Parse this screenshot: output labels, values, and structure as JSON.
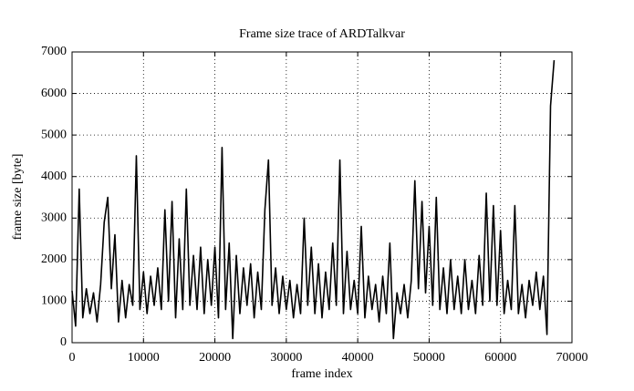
{
  "chart_data": {
    "type": "line",
    "title": "Frame size trace of ARDTalkvar",
    "x_label": "frame index",
    "y_label": "frame size [byte]",
    "color": "#000000",
    "grid": true,
    "xlim": [
      0,
      70000
    ],
    "xticks": [
      0,
      10000,
      20000,
      30000,
      40000,
      50000,
      60000,
      70000
    ],
    "ylim": [
      0,
      7000
    ],
    "yticks": [
      0,
      1000,
      2000,
      3000,
      4000,
      5000,
      6000,
      7000
    ],
    "x": [
      0,
      500,
      1000,
      1500,
      2000,
      2500,
      3000,
      3500,
      4000,
      4500,
      5000,
      5500,
      6000,
      6500,
      7000,
      7500,
      8000,
      8500,
      9000,
      9500,
      10000,
      10500,
      11000,
      11500,
      12000,
      12500,
      13000,
      13500,
      14000,
      14500,
      15000,
      15500,
      16000,
      16500,
      17000,
      17500,
      18000,
      18500,
      19000,
      19500,
      20000,
      20500,
      21000,
      21500,
      22000,
      22500,
      23000,
      23500,
      24000,
      24500,
      25000,
      25500,
      26000,
      26500,
      27000,
      27500,
      28000,
      28500,
      29000,
      29500,
      30000,
      30500,
      31000,
      31500,
      32000,
      32500,
      33000,
      33500,
      34000,
      34500,
      35000,
      35500,
      36000,
      36500,
      37000,
      37500,
      38000,
      38500,
      39000,
      39500,
      40000,
      40500,
      41000,
      41500,
      42000,
      42500,
      43000,
      43500,
      44000,
      44500,
      45000,
      45500,
      46000,
      46500,
      47000,
      47500,
      48000,
      48500,
      49000,
      49500,
      50000,
      50500,
      51000,
      51500,
      52000,
      52500,
      53000,
      53500,
      54000,
      54500,
      55000,
      55500,
      56000,
      56500,
      57000,
      57500,
      58000,
      58500,
      59000,
      59500,
      60000,
      60500,
      61000,
      61500,
      62000,
      62500,
      63000,
      63500,
      64000,
      64500,
      65000,
      65500,
      66000,
      66500,
      67000,
      67500
    ],
    "values": [
      1250,
      400,
      3700,
      600,
      1300,
      700,
      1200,
      500,
      1400,
      2900,
      3500,
      1300,
      2600,
      500,
      1500,
      600,
      1400,
      900,
      4500,
      800,
      1700,
      700,
      1600,
      900,
      1800,
      800,
      3200,
      1000,
      3400,
      600,
      2500,
      800,
      3700,
      900,
      2100,
      800,
      2300,
      700,
      2000,
      900,
      2300,
      600,
      4700,
      800,
      2400,
      100,
      2100,
      700,
      1800,
      900,
      1900,
      600,
      1700,
      800,
      3200,
      4400,
      900,
      1800,
      700,
      1600,
      800,
      1500,
      600,
      1400,
      700,
      3000,
      900,
      2300,
      700,
      1900,
      600,
      1700,
      800,
      2400,
      900,
      4400,
      700,
      2200,
      800,
      1500,
      700,
      2800,
      600,
      1600,
      800,
      1400,
      500,
      1600,
      700,
      2400,
      100,
      1200,
      700,
      1400,
      600,
      1500,
      3900,
      1300,
      3400,
      1200,
      2800,
      900,
      3500,
      800,
      1800,
      700,
      2000,
      800,
      1600,
      700,
      2000,
      800,
      1500,
      700,
      2100,
      900,
      3600,
      1000,
      3300,
      900,
      2700,
      700,
      1500,
      800,
      3300,
      700,
      1400,
      600,
      1500,
      900,
      1700,
      800,
      1600,
      200,
      5700,
      6800
    ]
  }
}
